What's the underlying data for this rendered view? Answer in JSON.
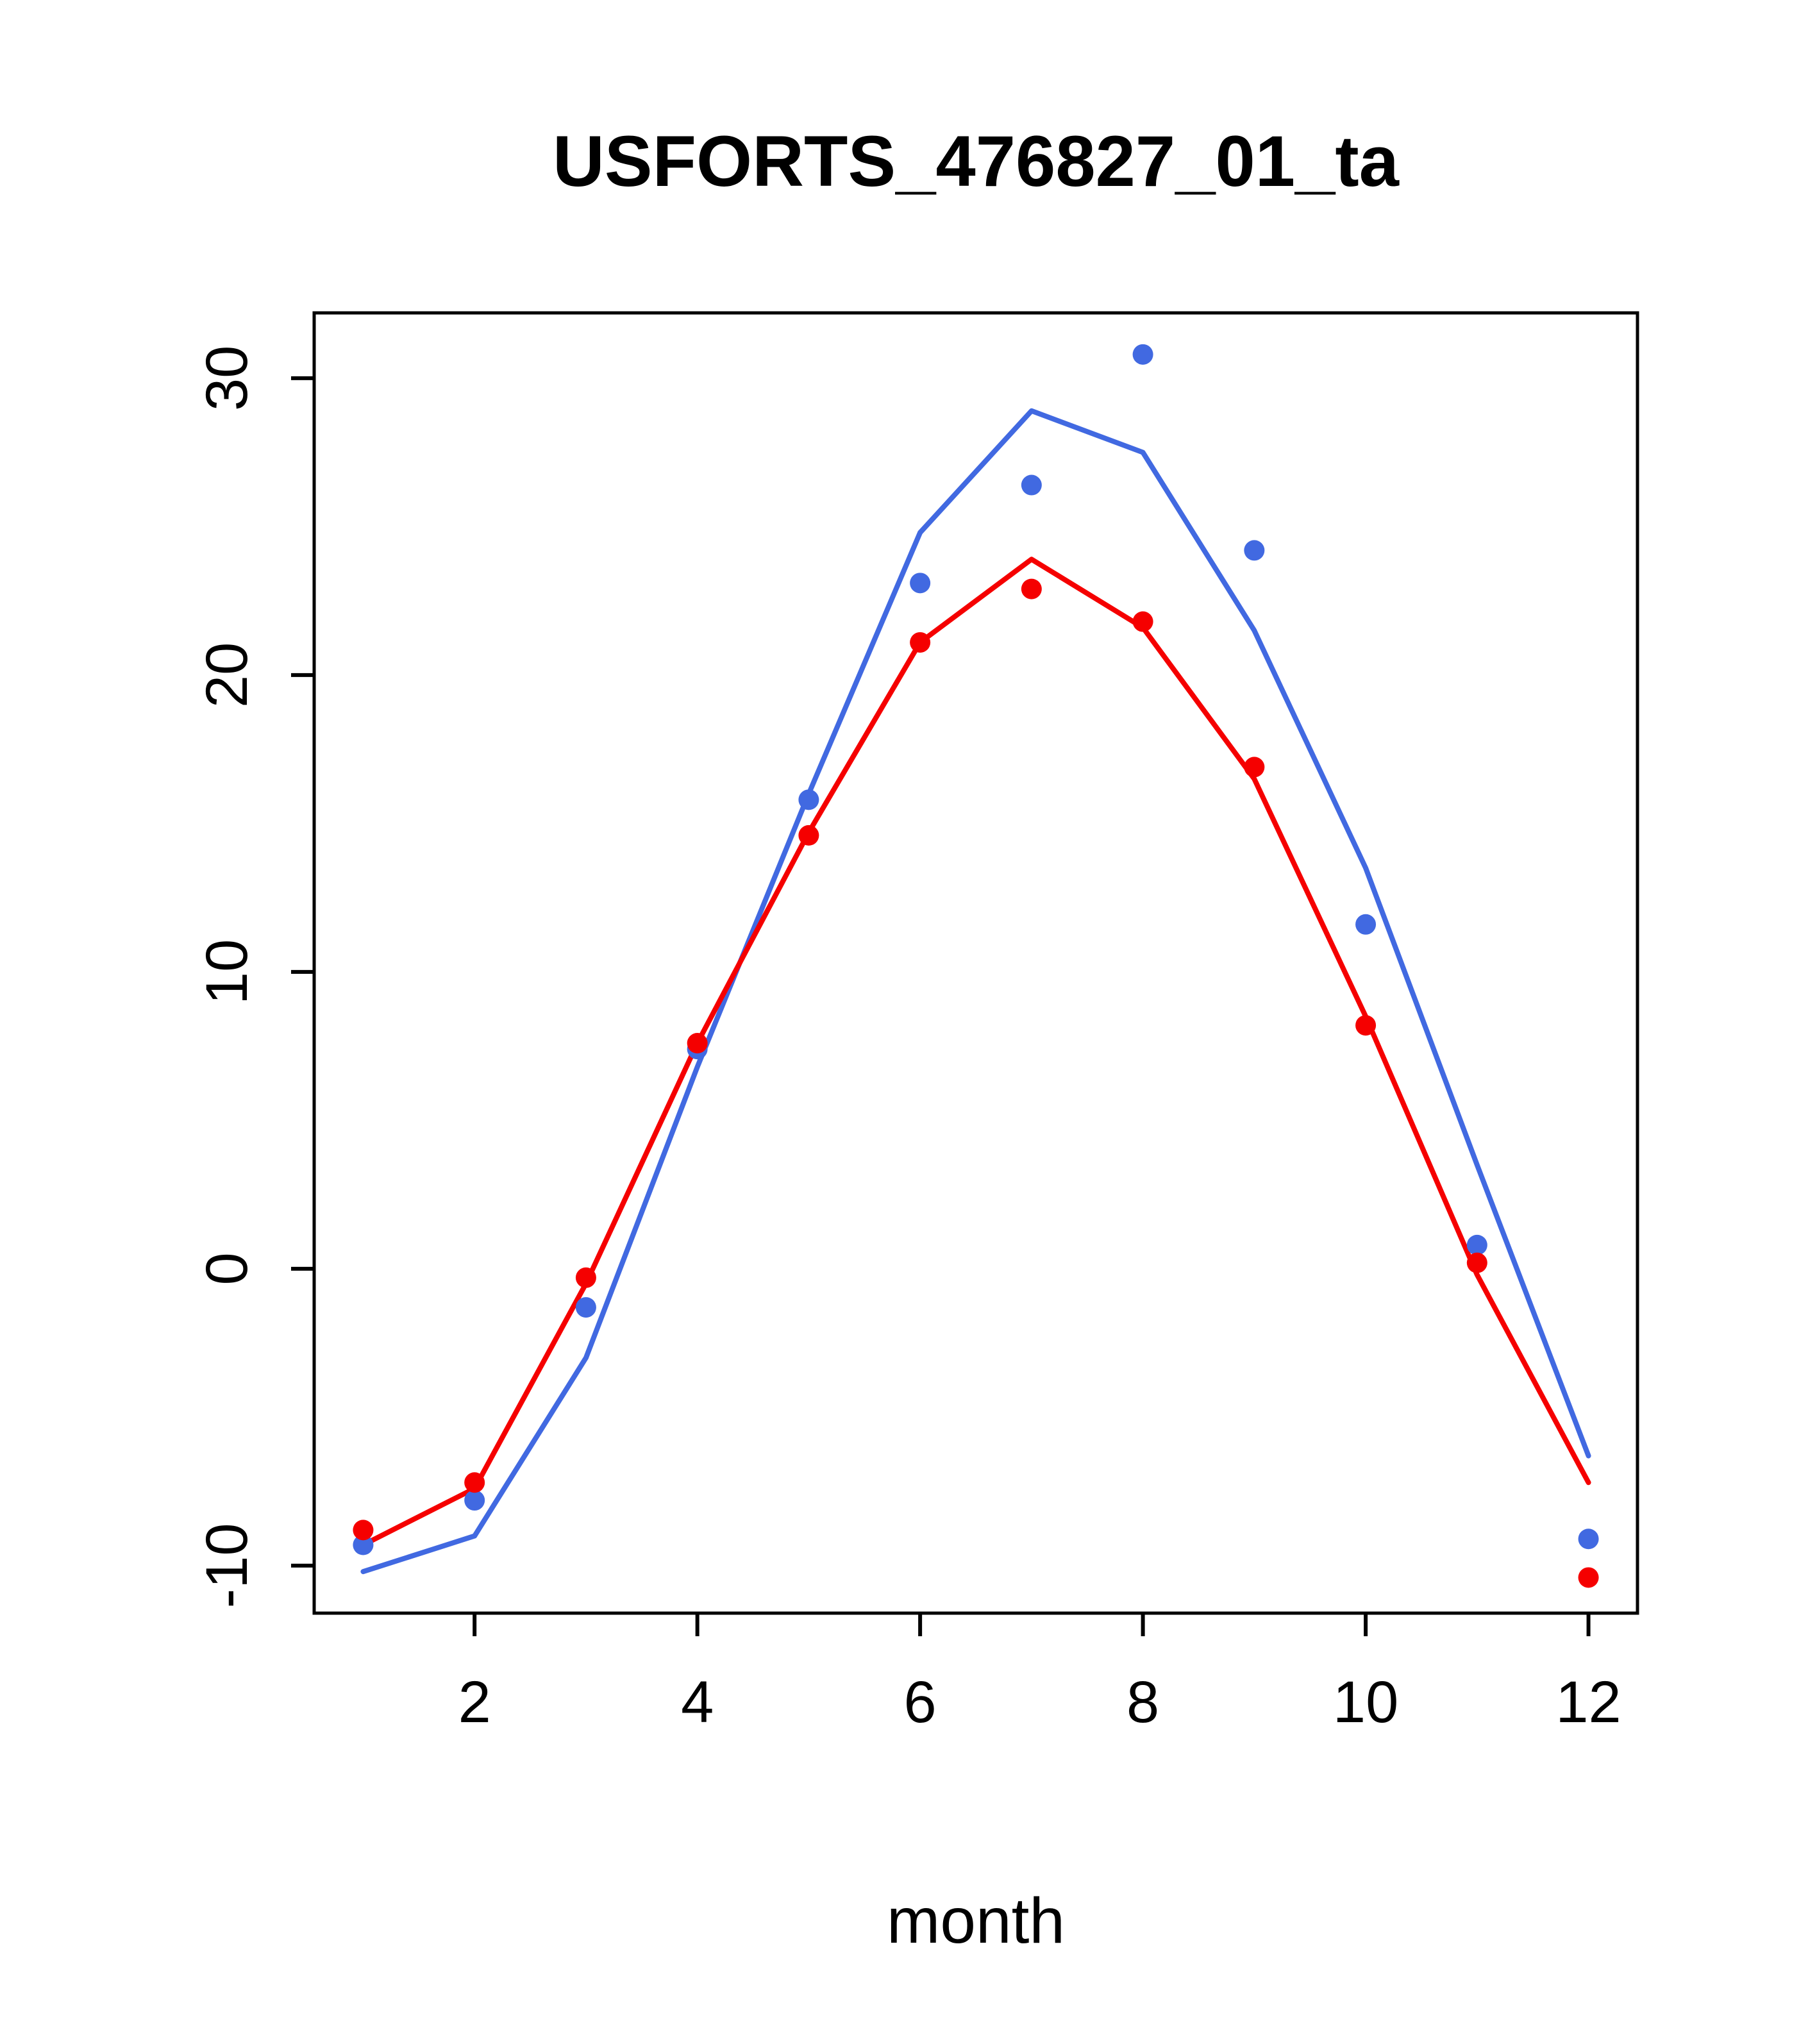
{
  "title": "USFORTS_476827_01_ta",
  "chart_data": {
    "type": "line",
    "title": "USFORTS_476827_01_ta",
    "xlabel": "month",
    "ylabel": "",
    "x": [
      1,
      2,
      3,
      4,
      5,
      6,
      7,
      8,
      9,
      10,
      11,
      12
    ],
    "xlim": [
      0.56,
      12.44
    ],
    "ylim": [
      -11.6,
      32.2
    ],
    "x_ticks": [
      2,
      4,
      6,
      8,
      10,
      12
    ],
    "y_ticks": [
      -10,
      0,
      10,
      20,
      30
    ],
    "grid": false,
    "legend": "none",
    "colors": {
      "blue": "#4169E1",
      "red": "#F50000",
      "axis": "#000000"
    },
    "series": [
      {
        "name": "blue-line",
        "style": "line",
        "color": "#4169E1",
        "values": [
          -10.2,
          -9.0,
          -3.0,
          6.8,
          16.0,
          24.8,
          28.9,
          27.5,
          21.5,
          13.5,
          3.5,
          -6.3
        ]
      },
      {
        "name": "red-line",
        "style": "line",
        "color": "#F50000",
        "values": [
          -9.3,
          -7.4,
          -0.5,
          7.6,
          14.7,
          21.1,
          23.9,
          21.6,
          16.5,
          8.5,
          -0.2,
          -7.2
        ]
      },
      {
        "name": "blue-points",
        "style": "scatter",
        "color": "#4169E1",
        "values": [
          -9.3,
          -7.8,
          -1.3,
          7.4,
          15.8,
          23.1,
          26.4,
          30.8,
          24.2,
          11.6,
          0.8,
          -9.1
        ]
      },
      {
        "name": "red-points",
        "style": "scatter",
        "color": "#F50000",
        "values": [
          -8.8,
          -7.2,
          -0.3,
          7.6,
          14.6,
          21.1,
          22.9,
          21.8,
          16.9,
          8.2,
          0.2,
          -10.4
        ]
      }
    ]
  }
}
